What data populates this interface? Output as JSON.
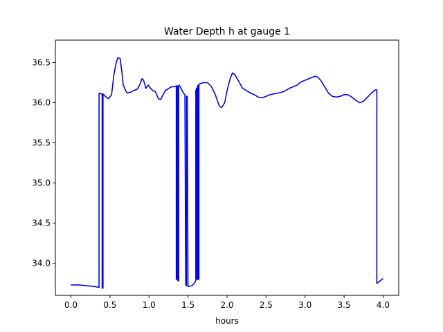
{
  "chart_data": {
    "type": "line",
    "title": "Water Depth h at gauge 1",
    "xlabel": "hours",
    "ylabel": "",
    "xlim": [
      -0.2,
      4.2
    ],
    "ylim": [
      33.6,
      36.78
    ],
    "xticks": [
      0.0,
      0.5,
      1.0,
      1.5,
      2.0,
      2.5,
      3.0,
      3.5,
      4.0
    ],
    "xtick_labels": [
      "0.0",
      "0.5",
      "1.0",
      "1.5",
      "2.0",
      "2.5",
      "3.0",
      "3.5",
      "4.0"
    ],
    "yticks": [
      34.0,
      34.5,
      35.0,
      35.5,
      36.0,
      36.5
    ],
    "ytick_labels": [
      "34.0",
      "34.5",
      "35.0",
      "35.5",
      "36.0",
      "36.5"
    ],
    "grid": false,
    "series": [
      {
        "name": "",
        "color": "#0000ff",
        "x": [
          0.0,
          0.1,
          0.2,
          0.3,
          0.35,
          0.36,
          0.36,
          0.39,
          0.4,
          0.4,
          0.41,
          0.41,
          0.44,
          0.48,
          0.52,
          0.55,
          0.58,
          0.6,
          0.63,
          0.65,
          0.67,
          0.7,
          0.72,
          0.76,
          0.8,
          0.85,
          0.88,
          0.91,
          0.93,
          0.96,
          0.99,
          1.02,
          1.05,
          1.08,
          1.12,
          1.15,
          1.18,
          1.21,
          1.24,
          1.27,
          1.3,
          1.33,
          1.35,
          1.35,
          1.36,
          1.36,
          1.37,
          1.37,
          1.38,
          1.38,
          1.4,
          1.44,
          1.46,
          1.47,
          1.48,
          1.48,
          1.49,
          1.5,
          1.55,
          1.58,
          1.6,
          1.6,
          1.61,
          1.61,
          1.62,
          1.62,
          1.63,
          1.63,
          1.64,
          1.64,
          1.66,
          1.7,
          1.75,
          1.8,
          1.85,
          1.9,
          1.93,
          1.97,
          2.0,
          2.04,
          2.07,
          2.1,
          2.13,
          2.16,
          2.2,
          2.25,
          2.3,
          2.35,
          2.4,
          2.45,
          2.5,
          2.55,
          2.6,
          2.65,
          2.7,
          2.75,
          2.8,
          2.85,
          2.9,
          2.95,
          3.0,
          3.05,
          3.1,
          3.13,
          3.16,
          3.2,
          3.25,
          3.3,
          3.35,
          3.4,
          3.45,
          3.5,
          3.55,
          3.6,
          3.65,
          3.7,
          3.75,
          3.8,
          3.85,
          3.9,
          3.92,
          3.92,
          3.96,
          4.0
        ],
        "y": [
          33.73,
          33.73,
          33.72,
          33.71,
          33.7,
          33.7,
          36.12,
          36.11,
          36.1,
          33.69,
          33.69,
          36.11,
          36.08,
          36.05,
          36.1,
          36.35,
          36.5,
          36.56,
          36.55,
          36.4,
          36.22,
          36.15,
          36.12,
          36.13,
          36.15,
          36.17,
          36.22,
          36.3,
          36.28,
          36.18,
          36.22,
          36.18,
          36.15,
          36.14,
          36.05,
          36.04,
          36.1,
          36.15,
          36.17,
          36.19,
          36.2,
          36.2,
          36.21,
          33.8,
          33.8,
          36.21,
          36.2,
          33.78,
          33.78,
          36.22,
          36.2,
          36.12,
          36.1,
          33.73,
          33.72,
          36.08,
          36.08,
          33.71,
          33.72,
          33.75,
          33.78,
          36.15,
          36.18,
          33.8,
          33.8,
          36.2,
          36.22,
          33.8,
          33.8,
          36.23,
          36.24,
          36.25,
          36.25,
          36.2,
          36.1,
          35.96,
          35.94,
          36.0,
          36.15,
          36.3,
          36.37,
          36.35,
          36.3,
          36.25,
          36.18,
          36.15,
          36.12,
          36.1,
          36.07,
          36.06,
          36.08,
          36.1,
          36.11,
          36.12,
          36.13,
          36.15,
          36.18,
          36.2,
          36.22,
          36.26,
          36.28,
          36.3,
          36.32,
          36.33,
          36.32,
          36.28,
          36.2,
          36.12,
          36.08,
          36.07,
          36.08,
          36.1,
          36.1,
          36.07,
          36.03,
          36.0,
          36.02,
          36.07,
          36.12,
          36.16,
          36.16,
          33.75,
          33.78,
          33.81
        ]
      }
    ]
  }
}
